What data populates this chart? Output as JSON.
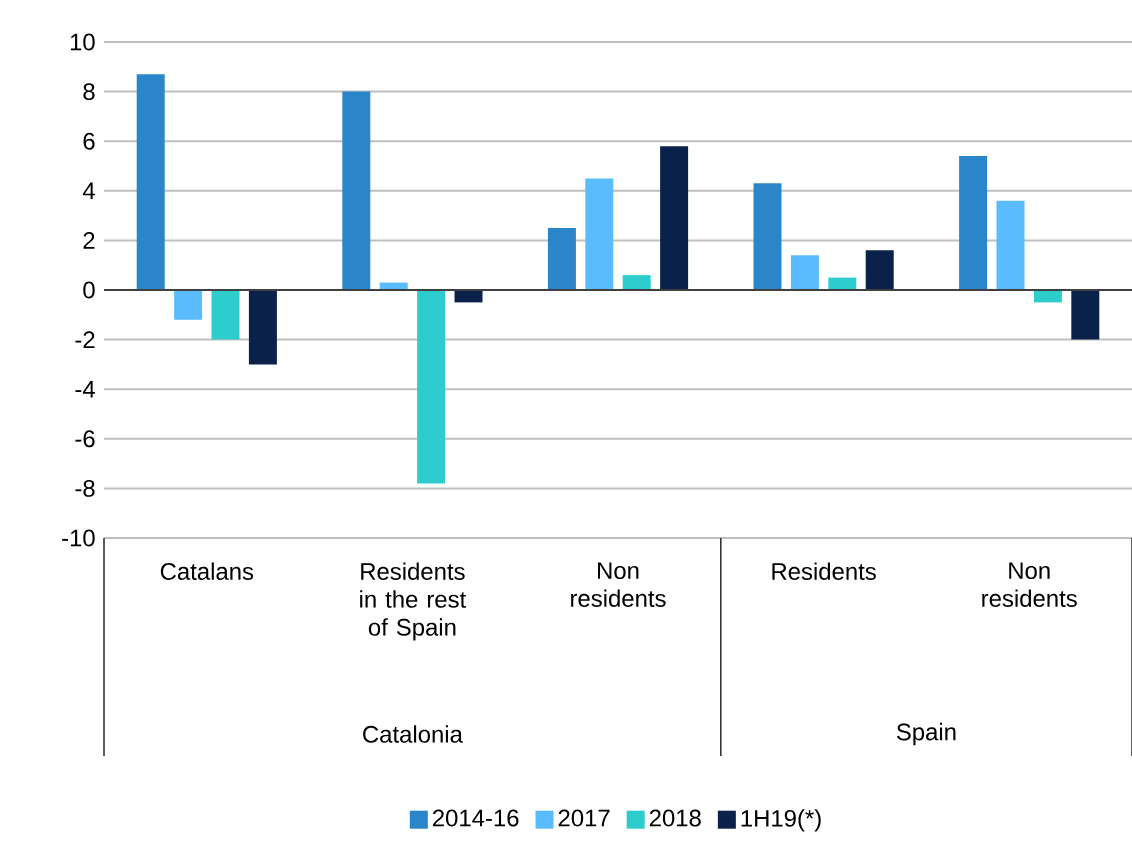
{
  "chart_data": {
    "type": "bar",
    "categories": [
      "Catalans",
      "Residents in the rest of Spain",
      "Non residents",
      "Residents",
      "Non residents"
    ],
    "series": [
      {
        "name": "2014-16",
        "color": "#2a86c8",
        "values": [
          8.7,
          8.0,
          2.5,
          4.3,
          5.4
        ]
      },
      {
        "name": "2017",
        "color": "#5bbcfd",
        "values": [
          -1.2,
          0.3,
          4.5,
          1.4,
          3.6
        ]
      },
      {
        "name": "2018",
        "color": "#2ecdcd",
        "values": [
          -2.0,
          -7.8,
          0.6,
          0.5,
          -0.5
        ]
      },
      {
        "name": "1H19(*)",
        "color": "#0a2149",
        "values": [
          -3.0,
          -0.5,
          5.8,
          1.6,
          -2.0
        ]
      }
    ],
    "annotations": [
      "Catalonia",
      "Spain"
    ],
    "ylim": [
      -10,
      10
    ],
    "yticks": [
      -10,
      -8,
      -6,
      -4,
      -2,
      0,
      2,
      4,
      6,
      8,
      10
    ],
    "grid": "y",
    "legend": "bottom"
  }
}
